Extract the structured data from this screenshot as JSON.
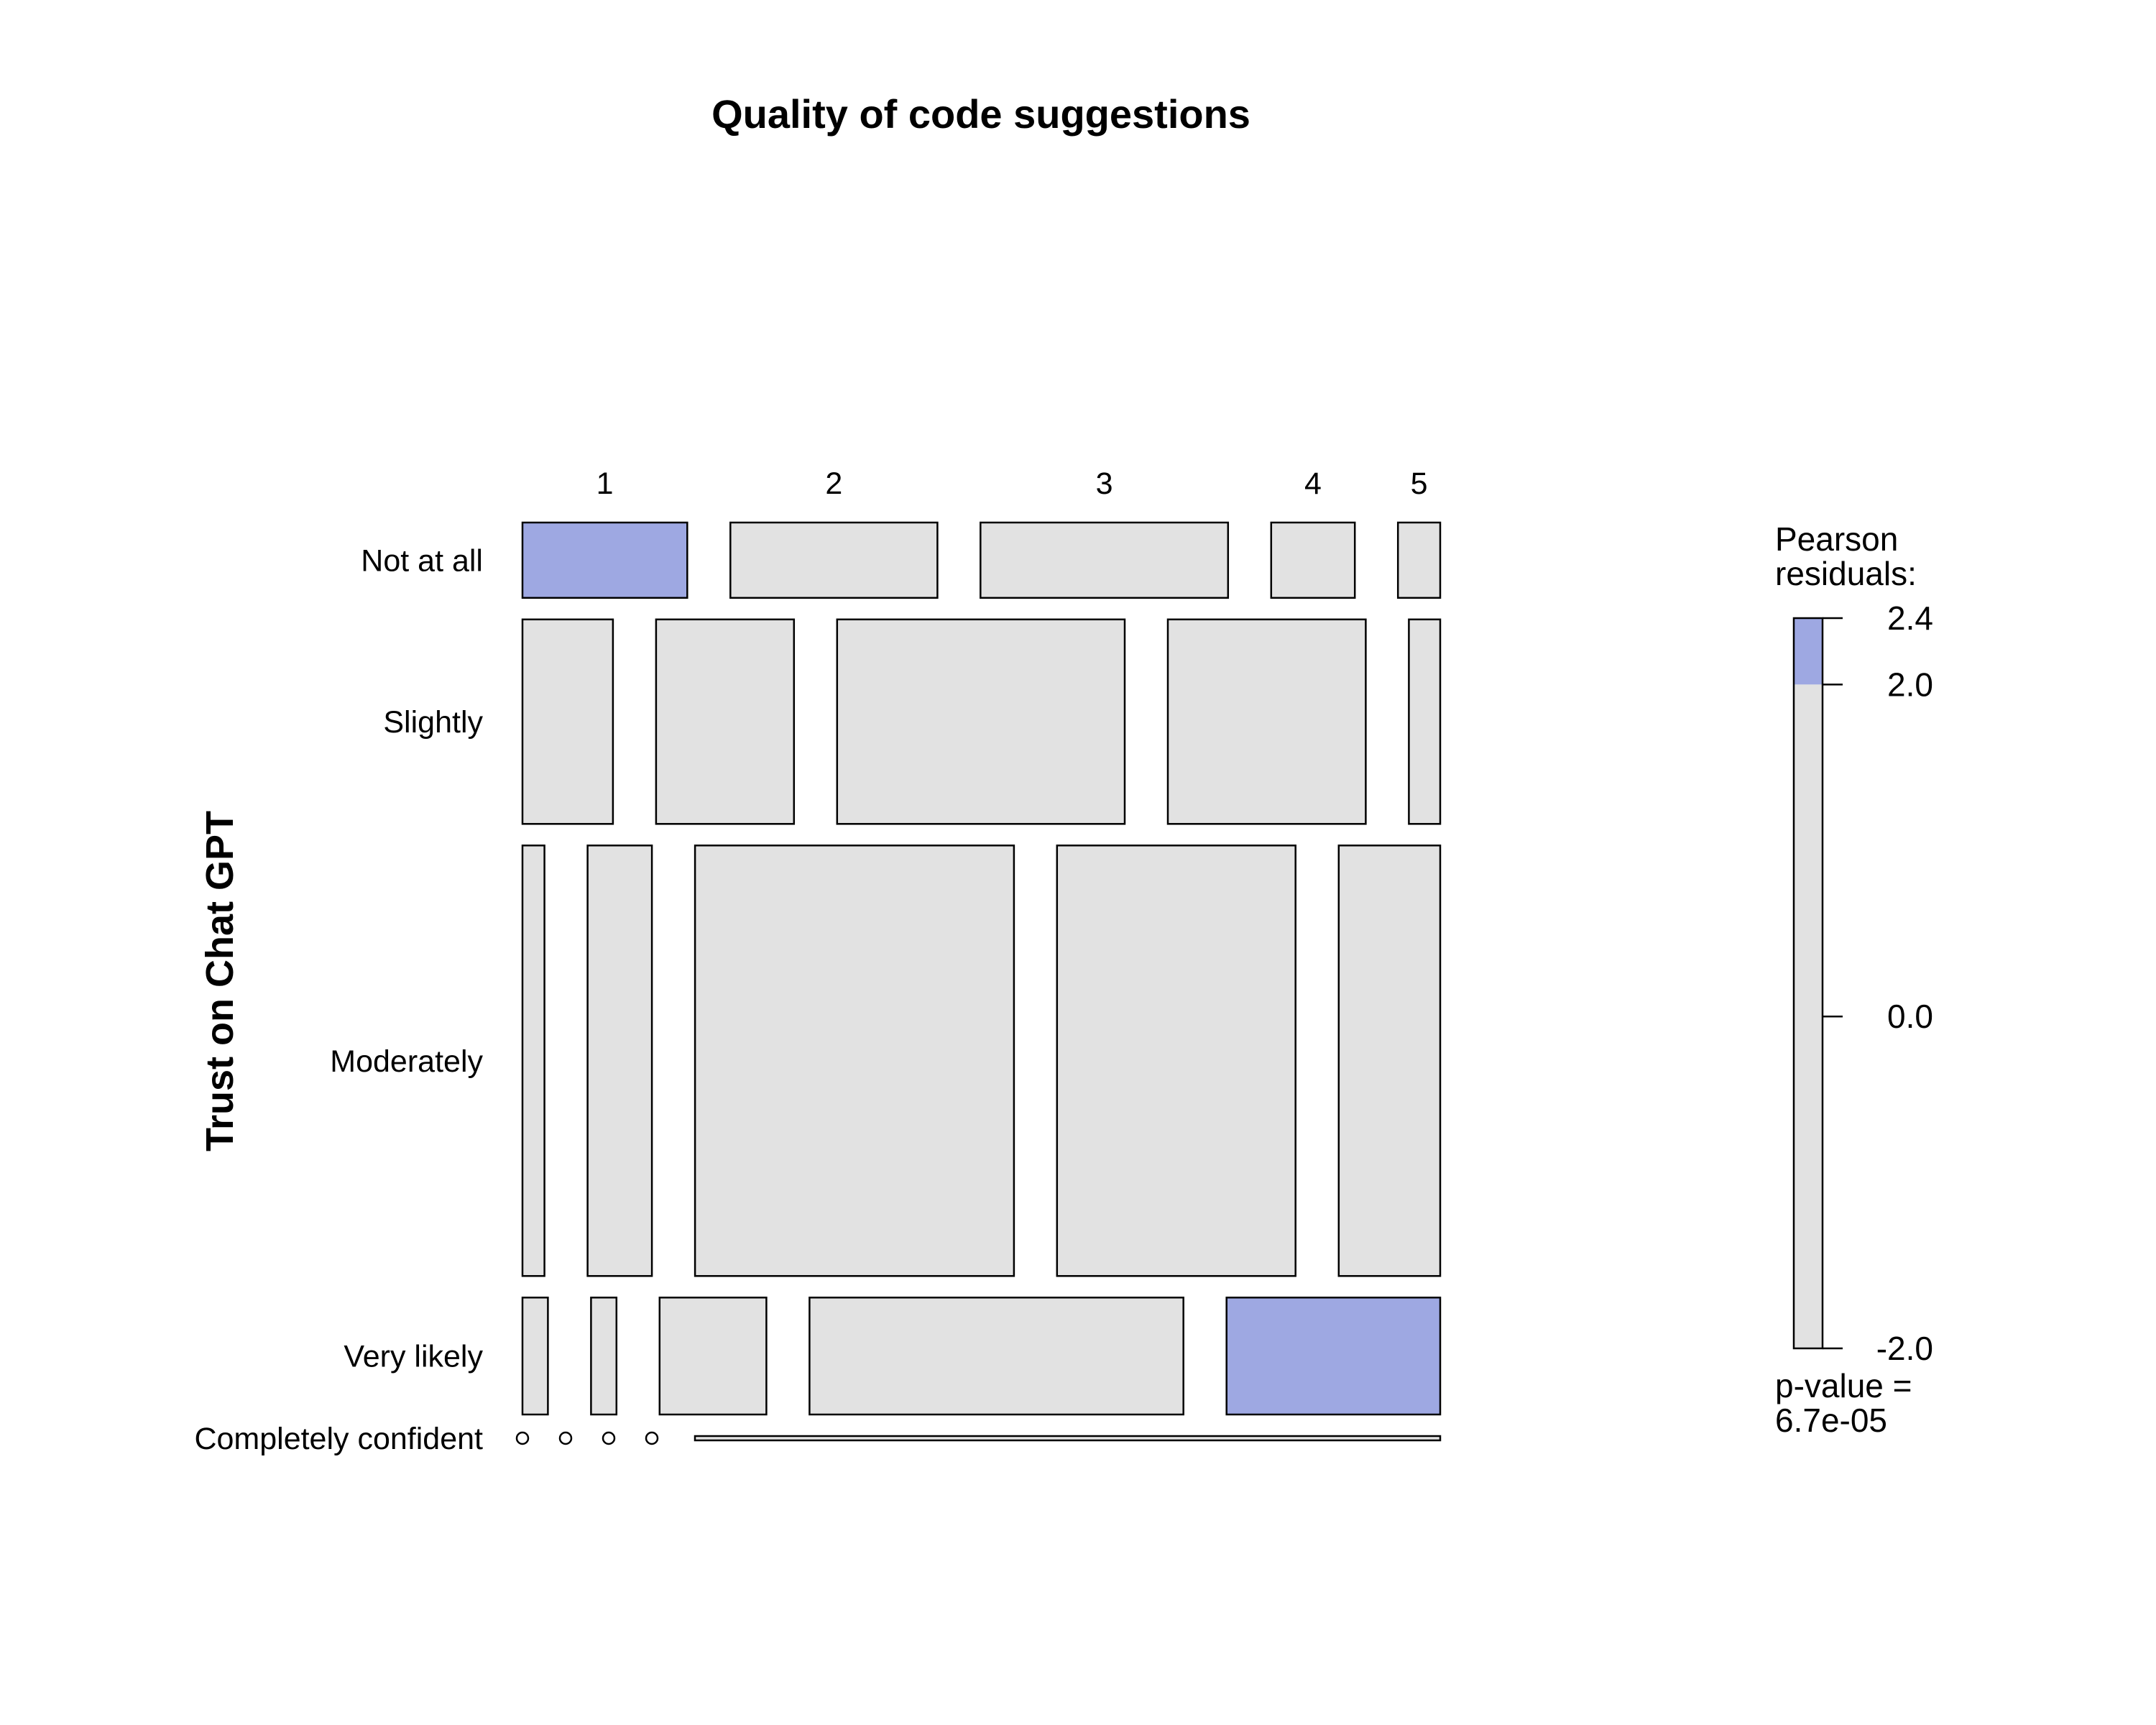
{
  "chart_data": {
    "type": "mosaic",
    "title": "Quality of code suggestions",
    "xlabel": "",
    "ylabel": "Trust on Chat GPT",
    "columns": [
      "1",
      "2",
      "3",
      "4",
      "5"
    ],
    "rows": [
      "Not at all",
      "Slightly",
      "Moderately",
      "Very likely",
      "Completely confident"
    ],
    "row_proportions": [
      0.105,
      0.285,
      0.6,
      0.163,
      0.006
    ],
    "cell_column_proportions": [
      [
        0.195,
        0.245,
        0.293,
        0.099,
        0.05
      ],
      [
        0.107,
        0.163,
        0.34,
        0.234,
        0.037
      ],
      [
        0.026,
        0.076,
        0.377,
        0.282,
        0.12
      ],
      [
        0.03,
        0.03,
        0.126,
        0.441,
        0.252
      ],
      [
        0.0,
        0.0,
        0.0,
        0.0,
        1.0
      ]
    ],
    "shaded_cells": [
      [
        0,
        0
      ],
      [
        3,
        4
      ]
    ],
    "legend": {
      "title_lines": [
        "Pearson",
        "residuals:"
      ],
      "ticks": [
        "2.4",
        "2.0",
        "0.0",
        "-2.0"
      ],
      "tick_values": [
        2.4,
        2.0,
        0.0,
        -2.0
      ],
      "range": [
        -2.0,
        2.4
      ],
      "shade_threshold": 2.0,
      "pvalue_lines": [
        "p-value =",
        "6.7e-05"
      ],
      "placement": "right"
    },
    "colors": {
      "neutral": "#e2e2e2",
      "positive": "#9ea8e2",
      "border": "#000000"
    }
  }
}
